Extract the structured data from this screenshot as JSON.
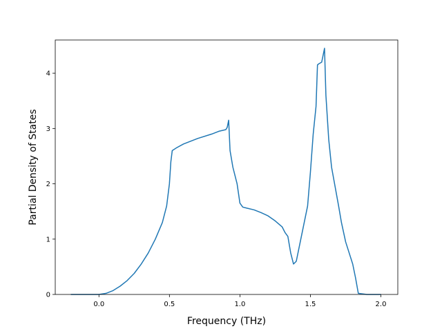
{
  "chart_data": {
    "type": "line",
    "title": "",
    "xlabel": "Frequency (THz)",
    "ylabel": "Partial Density of States",
    "xlim": [
      -0.31,
      2.12
    ],
    "ylim": [
      0,
      4.6
    ],
    "grid": false,
    "legend": "none",
    "line_color": "#1f77b4",
    "x_ticks": [
      {
        "value": 0.0,
        "label": "0.0"
      },
      {
        "value": 0.5,
        "label": "0.5"
      },
      {
        "value": 1.0,
        "label": "1.0"
      },
      {
        "value": 1.5,
        "label": "1.5"
      },
      {
        "value": 2.0,
        "label": "2.0"
      }
    ],
    "y_ticks": [
      {
        "value": 0,
        "label": "0"
      },
      {
        "value": 1,
        "label": "1"
      },
      {
        "value": 2,
        "label": "2"
      },
      {
        "value": 3,
        "label": "3"
      },
      {
        "value": 4,
        "label": "4"
      }
    ],
    "series": [
      {
        "x": [
          -0.2,
          -0.1,
          0.0,
          0.05,
          0.1,
          0.15,
          0.2,
          0.25,
          0.3,
          0.35,
          0.4,
          0.45,
          0.48,
          0.5,
          0.51,
          0.52,
          0.55,
          0.6,
          0.7,
          0.8,
          0.85,
          0.9,
          0.91,
          0.92,
          0.93,
          0.95,
          0.98,
          1.0,
          1.02,
          1.05,
          1.1,
          1.15,
          1.2,
          1.25,
          1.3,
          1.32,
          1.34,
          1.36,
          1.38,
          1.4,
          1.44,
          1.48,
          1.5,
          1.52,
          1.54,
          1.55,
          1.56,
          1.58,
          1.6,
          1.61,
          1.63,
          1.65,
          1.7,
          1.72,
          1.75,
          1.8,
          1.82,
          1.84,
          1.9,
          2.0
        ],
        "y": [
          0,
          0,
          0,
          0.02,
          0.07,
          0.15,
          0.25,
          0.38,
          0.55,
          0.75,
          1.0,
          1.3,
          1.6,
          2.0,
          2.4,
          2.6,
          2.65,
          2.72,
          2.82,
          2.9,
          2.95,
          2.98,
          3.02,
          3.15,
          2.6,
          2.3,
          2.0,
          1.65,
          1.58,
          1.56,
          1.53,
          1.48,
          1.42,
          1.33,
          1.22,
          1.12,
          1.05,
          0.75,
          0.55,
          0.6,
          1.1,
          1.6,
          2.2,
          2.9,
          3.4,
          4.15,
          4.17,
          4.2,
          4.45,
          3.6,
          2.8,
          2.3,
          1.6,
          1.3,
          0.95,
          0.55,
          0.3,
          0.02,
          0,
          0
        ]
      }
    ]
  }
}
